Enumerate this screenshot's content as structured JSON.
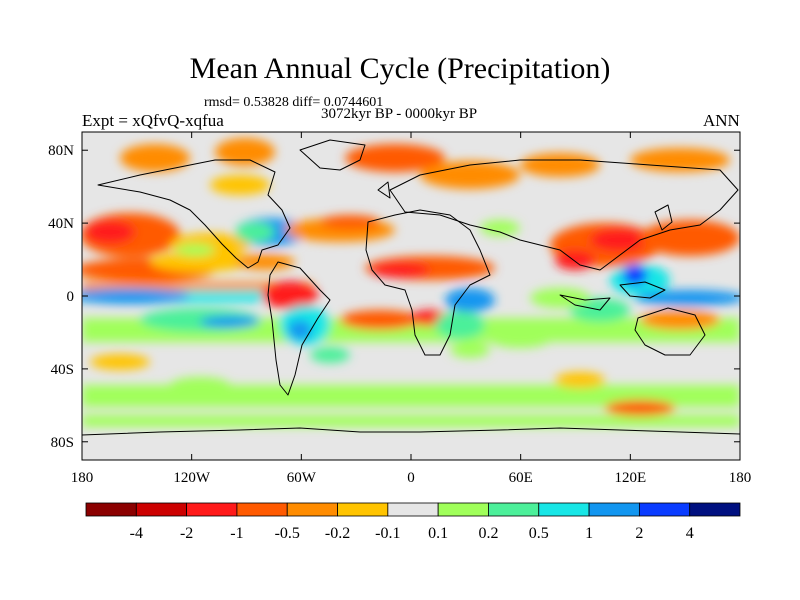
{
  "title": "Mean Annual Cycle (Precipitation)",
  "stats": "rmsd= 0.53828 diff= 0.0744601",
  "period": "3072kyr BP - 0000kyr BP",
  "experiment": "Expt = xQfvQ-xqfua",
  "season": "ANN",
  "lon_ticks": [
    "180",
    "120W",
    "60W",
    "0",
    "60E",
    "120E",
    "180"
  ],
  "lat_ticks": [
    "80N",
    "40N",
    "0",
    "40S",
    "80S"
  ],
  "colorbar": {
    "labels": [
      "-4",
      "-2",
      "-1",
      "-0.5",
      "-0.2",
      "-0.1",
      "0.1",
      "0.2",
      "0.5",
      "1",
      "2",
      "4"
    ],
    "colors": [
      "#8b0000",
      "#cc0000",
      "#ff1a1a",
      "#ff5a00",
      "#ff8c00",
      "#ffc400",
      "#e6e6e6",
      "#a0ff5a",
      "#4cf09a",
      "#18e6e6",
      "#1296f0",
      "#0a3cff",
      "#001080"
    ]
  }
}
